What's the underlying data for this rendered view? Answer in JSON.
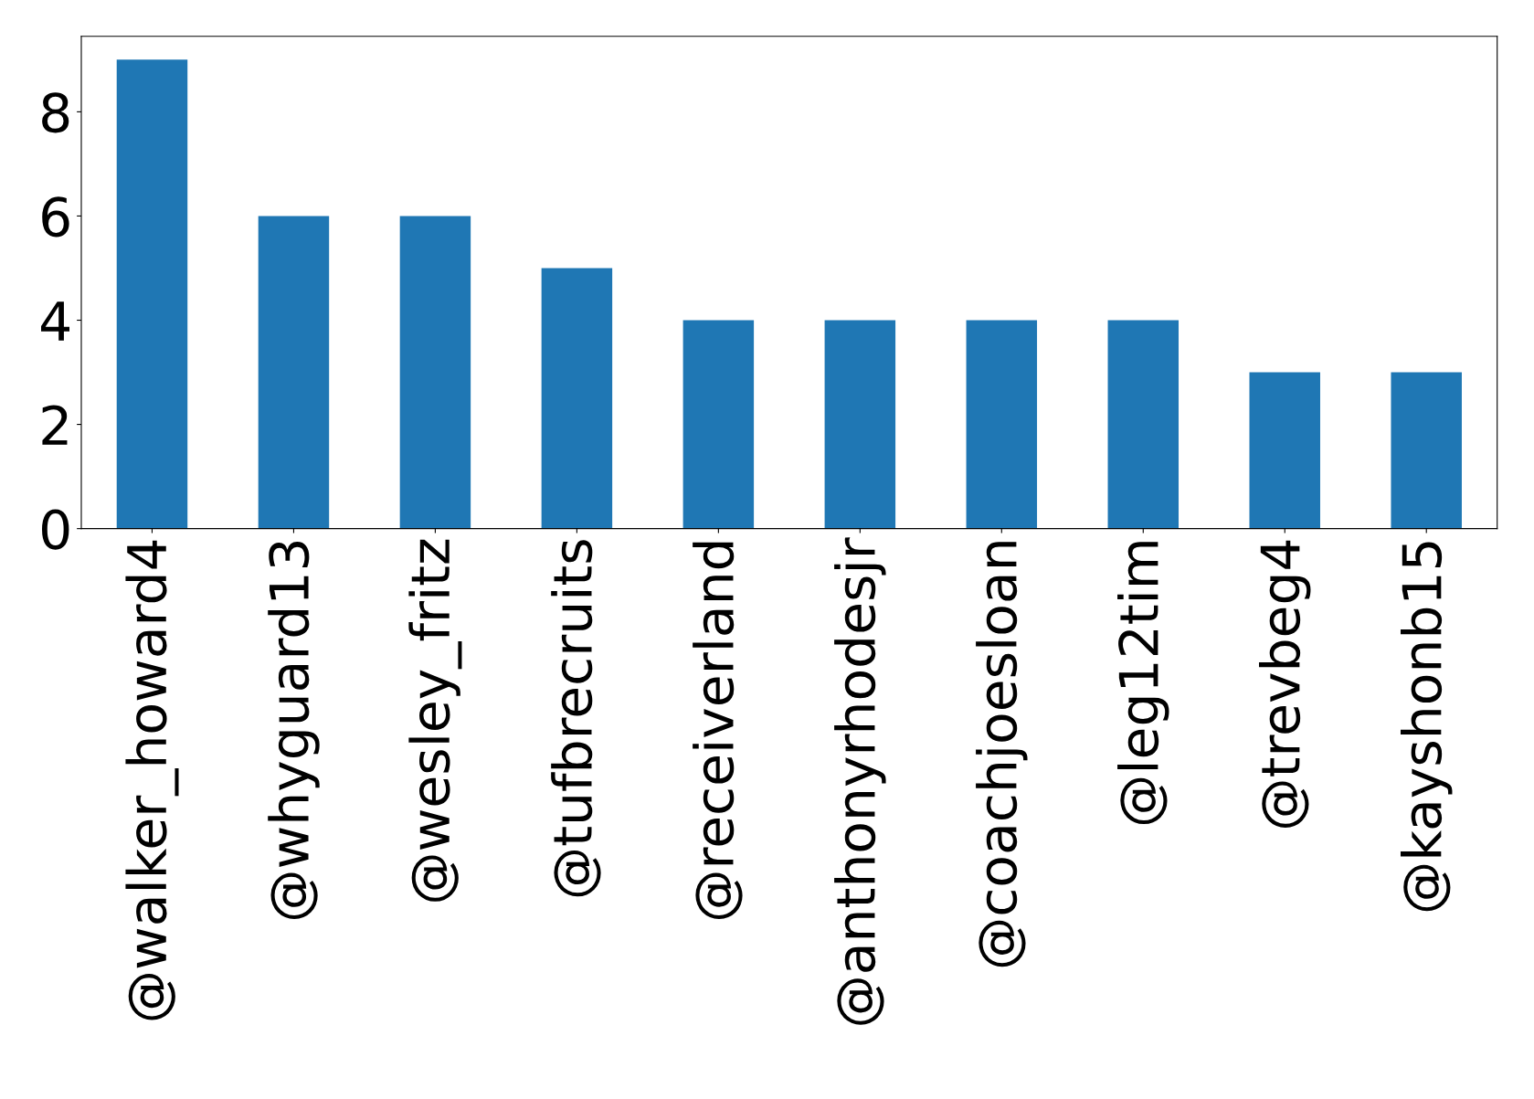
{
  "chart_data": {
    "type": "bar",
    "categories": [
      "@walker_howard4",
      "@whyguard13",
      "@wesley_fritz",
      "@tufbrecruits",
      "@receiverland",
      "@anthonyrhodesjr",
      "@coachjoesloan",
      "@leg12tim",
      "@trevbeg4",
      "@kayshonb15"
    ],
    "values": [
      9,
      6,
      6,
      5,
      4,
      4,
      4,
      4,
      3,
      3
    ],
    "color": "#1f77b4",
    "ylim": [
      0,
      9.45
    ],
    "yticks": [
      0,
      2,
      4,
      6,
      8
    ],
    "grid": false,
    "legend": false
  }
}
